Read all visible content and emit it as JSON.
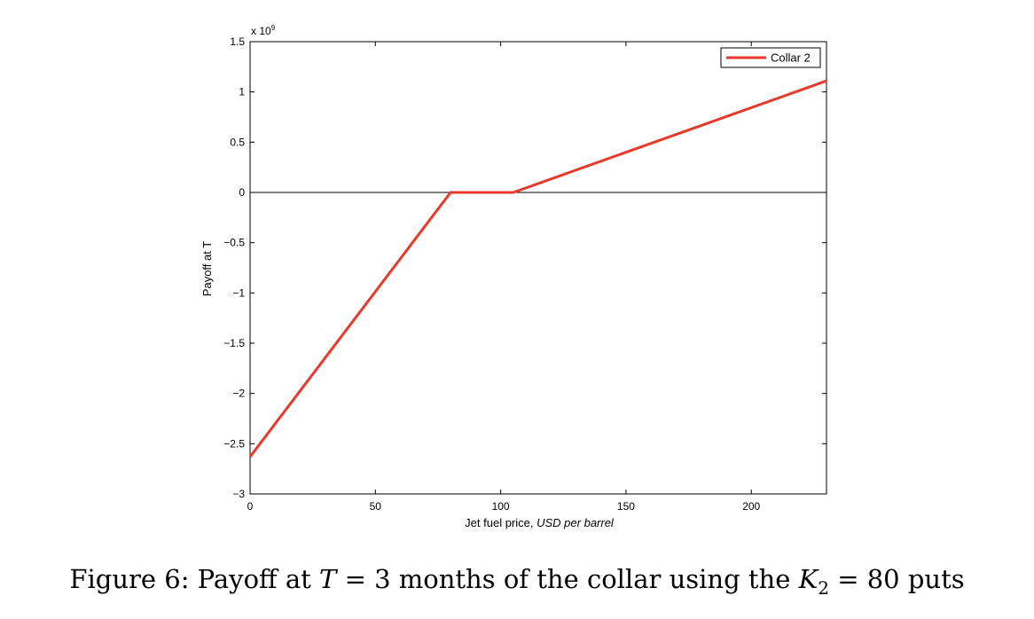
{
  "chart_data": {
    "type": "line",
    "xlabel": "Jet fuel price,",
    "xlabel_italic": "USD per barrel",
    "ylabel": "Payoff at T",
    "y_exponent_label": "x 10",
    "y_exponent_power": "9",
    "xlim": [
      0,
      230
    ],
    "ylim": [
      -3,
      1.5
    ],
    "x_ticks": [
      0,
      50,
      100,
      150,
      200
    ],
    "x_tick_labels": [
      "0",
      "50",
      "100",
      "150",
      "200"
    ],
    "y_ticks": [
      -3,
      -2.5,
      -2,
      -1.5,
      -1,
      -0.5,
      0,
      0.5,
      1,
      1.5
    ],
    "y_tick_labels": [
      "−3",
      "−2.5",
      "−2",
      "−1.5",
      "−1",
      "−0.5",
      "0",
      "0.5",
      "1",
      "1.5"
    ],
    "y_multiplier": 1000000000,
    "zero_line": true,
    "grid": false,
    "legend_position": "top-right",
    "series": [
      {
        "name": "Collar 2",
        "color": "#e8392b",
        "x": [
          0,
          80,
          105,
          230
        ],
        "y": [
          -2.63,
          0,
          0,
          1.11
        ]
      }
    ]
  },
  "caption": {
    "prefix": "Figure 6: Payoff at ",
    "var_T": "T",
    "mid": " = 3 months of the collar using the ",
    "var_K": "K",
    "sub_K": "2",
    "suffix": " = 80 puts"
  }
}
